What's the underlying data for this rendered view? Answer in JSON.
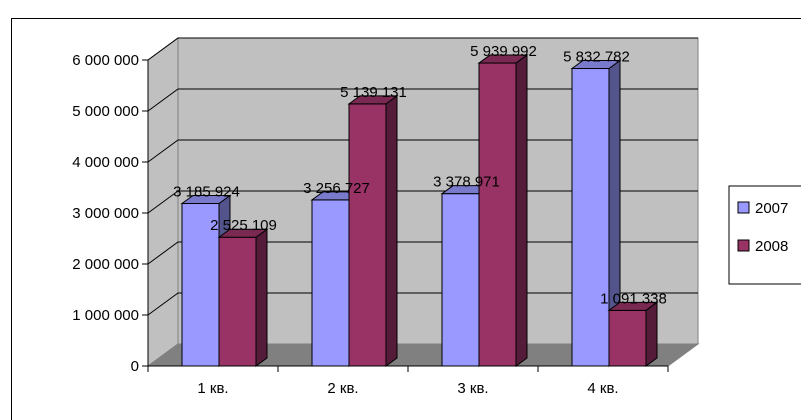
{
  "chart_data": {
    "type": "bar",
    "title": "",
    "categories": [
      "1 кв.",
      "2 кв.",
      "3 кв.",
      "4 кв."
    ],
    "series": [
      {
        "name": "2007",
        "values": [
          3185924,
          3256727,
          3378971,
          5832782
        ],
        "labels": [
          "3 185 924",
          "3 256 727",
          "3 378 971",
          "5 832 782"
        ],
        "color": "#9999FF"
      },
      {
        "name": "2008",
        "values": [
          2525109,
          5139131,
          5939992,
          1091338
        ],
        "labels": [
          "2 525 109",
          "5 139 131",
          "5 939 992",
          "1 091 338"
        ],
        "color": "#993366"
      }
    ],
    "y_ticks": [
      {
        "value": 0,
        "label": "0"
      },
      {
        "value": 1000000,
        "label": "1 000 000"
      },
      {
        "value": 2000000,
        "label": "2 000 000"
      },
      {
        "value": 3000000,
        "label": "3 000 000"
      },
      {
        "value": 4000000,
        "label": "4 000 000"
      },
      {
        "value": 5000000,
        "label": "5 000 000"
      },
      {
        "value": 6000000,
        "label": "6 000 000"
      }
    ],
    "ylim": [
      0,
      6000000
    ],
    "grid": true,
    "legend_position": "right",
    "xlabel": "",
    "ylabel": "",
    "style": "3d-clustered-column",
    "wall_color": "#C0C0C0",
    "floor_color": "#808080"
  }
}
